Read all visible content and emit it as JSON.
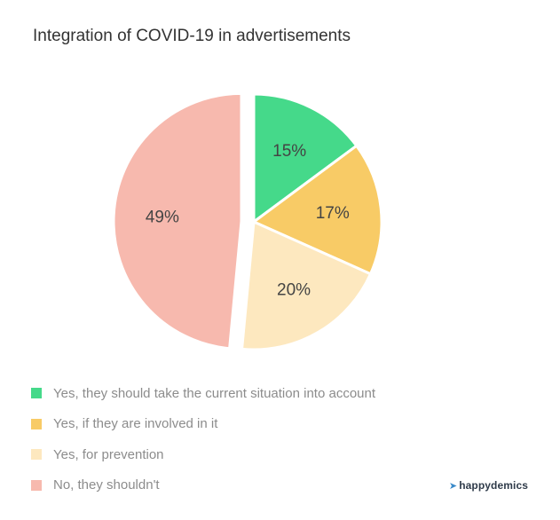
{
  "chart_data": {
    "type": "pie",
    "title": "Integration of COVID-19 in advertisements",
    "slices": [
      {
        "label": "Yes, they should take the current situation into account",
        "value": 15,
        "display": "15%",
        "color": "#45d98a"
      },
      {
        "label": "Yes, if they are involved in it",
        "value": 17,
        "display": "17%",
        "color": "#f8cb66"
      },
      {
        "label": "Yes, for prevention",
        "value": 20,
        "display": "20%",
        "color": "#fde8bf"
      },
      {
        "label": "No, they shouldn't",
        "value": 49,
        "display": "49%",
        "color": "#f7b9ae"
      }
    ],
    "exploded_slice": "No, they shouldn't",
    "legend_position": "bottom-left"
  },
  "brand": {
    "name": "happydemics",
    "icon": "bird-icon"
  }
}
